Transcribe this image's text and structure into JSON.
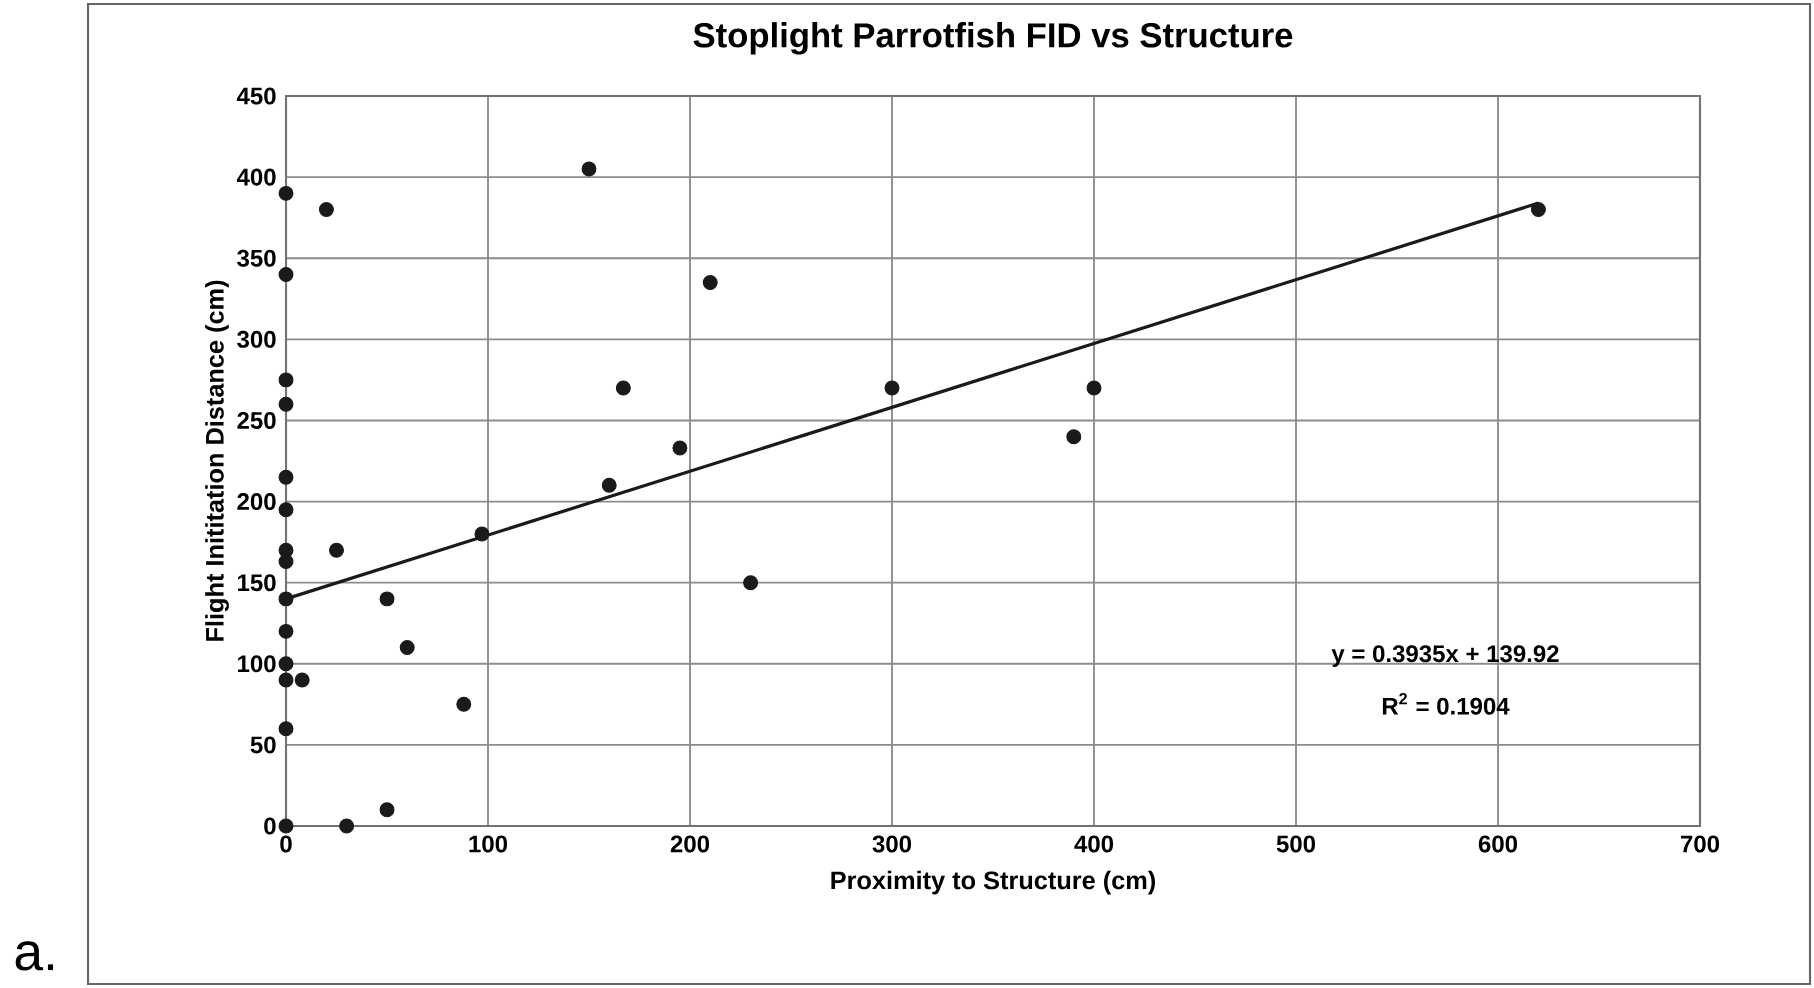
{
  "chart_data": {
    "type": "scatter",
    "title": "Stoplight Parrotfish FID vs Structure",
    "xlabel": "Proximity to Structure (cm)",
    "ylabel": "Flight Inititation Distance (cm)",
    "series": [
      {
        "marker": "circle",
        "color": "#1a1a1a",
        "x": [
          0,
          0,
          0,
          0,
          0,
          0,
          0,
          0,
          0,
          0,
          0,
          0,
          0,
          0,
          8,
          20,
          25,
          30,
          50,
          50,
          60,
          88,
          97,
          150,
          160,
          167,
          195,
          210,
          230,
          300,
          390,
          400,
          620
        ],
        "values": [
          390,
          340,
          275,
          260,
          215,
          195,
          170,
          163,
          140,
          120,
          100,
          90,
          60,
          0,
          90,
          380,
          170,
          0,
          10,
          140,
          110,
          75,
          180,
          405,
          210,
          270,
          233,
          335,
          150,
          270,
          240,
          270,
          380
        ]
      },
      {
        "type": "line",
        "marker": "none",
        "color": "#1a1a1a",
        "x": [
          0,
          620
        ],
        "values": [
          140,
          384
        ]
      }
    ],
    "xlim": [
      0,
      700
    ],
    "xticks": [
      0,
      100,
      200,
      300,
      400,
      500,
      600,
      700
    ],
    "ylim": [
      0,
      450
    ],
    "yticks": [
      0,
      50,
      100,
      150,
      200,
      250,
      300,
      350,
      400,
      450
    ],
    "grid": true,
    "annotations": [
      "y = 0.3935x + 139.92",
      "R$^{2}$ = 0.1904",
      "a."
    ]
  }
}
